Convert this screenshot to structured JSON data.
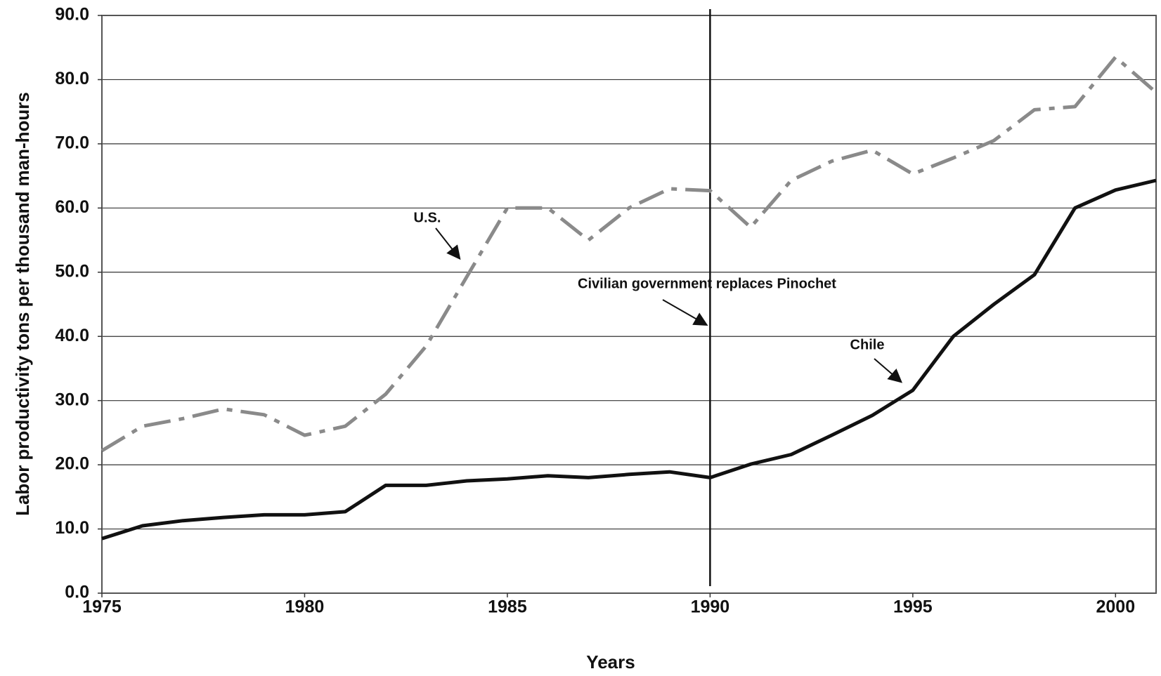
{
  "chart_data": {
    "type": "line",
    "x_label": "Years",
    "y_label": "Labor productivity tons per thousand man-hours",
    "x": [
      1975,
      1976,
      1977,
      1978,
      1979,
      1980,
      1981,
      1982,
      1983,
      1984,
      1985,
      1986,
      1987,
      1988,
      1989,
      1990,
      1991,
      1992,
      1993,
      1994,
      1995,
      1996,
      1997,
      1998,
      1999,
      2000,
      2001
    ],
    "series": [
      {
        "name": "U.S.",
        "color": "#8a8a8a",
        "line_style": "dashdot",
        "values": [
          22.2,
          26.0,
          27.2,
          28.7,
          27.8,
          24.6,
          26.0,
          31.0,
          38.5,
          49.3,
          60.0,
          60.0,
          55.0,
          60.0,
          63.0,
          62.7,
          57.0,
          64.3,
          67.3,
          69.0,
          65.3,
          67.8,
          70.5,
          75.3,
          75.8,
          83.5,
          78.0
        ]
      },
      {
        "name": "Chile",
        "color": "#111111",
        "line_style": "solid",
        "values": [
          8.5,
          10.5,
          11.3,
          11.8,
          12.2,
          12.2,
          12.7,
          16.8,
          16.8,
          17.5,
          17.8,
          18.3,
          18.0,
          18.5,
          18.9,
          18.0,
          20.1,
          21.6,
          24.6,
          27.7,
          31.6,
          40.0,
          45.0,
          49.6,
          60.0,
          62.8,
          64.3
        ]
      }
    ],
    "annotations": [
      "Civilian government replaces Pinochet"
    ],
    "reference_line_x": 1990,
    "xlim": [
      1975,
      2001
    ],
    "xticks": [
      1975,
      1980,
      1985,
      1990,
      1995,
      2000
    ],
    "ylim": [
      0,
      90
    ],
    "yticks": [
      {
        "value": 0,
        "label": "0.0"
      },
      {
        "value": 10,
        "label": "10.0"
      },
      {
        "value": 20,
        "label": "20.0"
      },
      {
        "value": 30,
        "label": "30.0"
      },
      {
        "value": 40,
        "label": "40.0"
      },
      {
        "value": 50,
        "label": "50.0"
      },
      {
        "value": 60,
        "label": "60.0"
      },
      {
        "value": 70,
        "label": "70.0"
      },
      {
        "value": 80,
        "label": "80.0"
      },
      {
        "value": 90,
        "label": "90.0"
      }
    ],
    "grid": true
  }
}
